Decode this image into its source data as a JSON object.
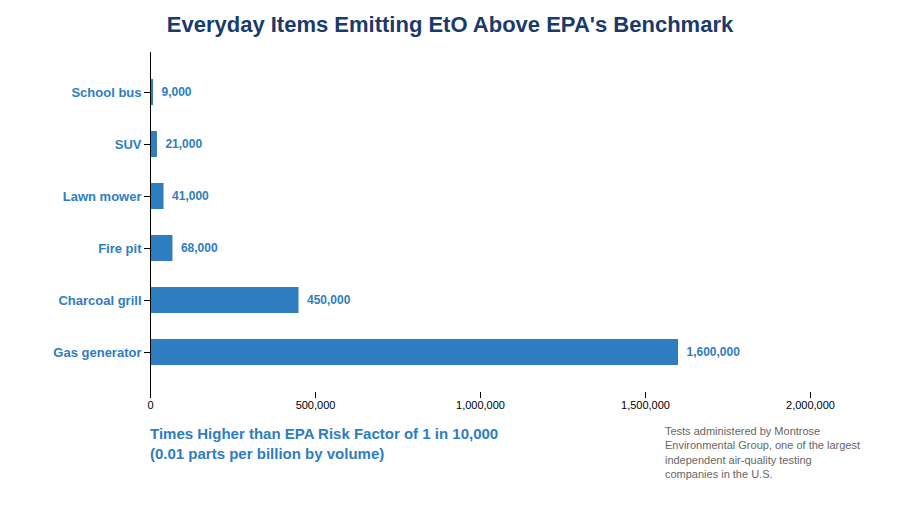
{
  "chart_data": {
    "type": "bar",
    "orientation": "horizontal",
    "title": "Everyday Items Emitting EtO Above EPA's Benchmark",
    "categories": [
      "Gas generator",
      "Charcoal grill",
      "Fire pit",
      "Lawn mower",
      "SUV",
      "School bus"
    ],
    "values": [
      1600000,
      450000,
      68000,
      41000,
      21000,
      9000
    ],
    "value_labels": [
      "1,600,000",
      "450,000",
      "68,000",
      "41,000",
      "21,000",
      "9,000"
    ],
    "data_labels": true,
    "color": "#2E7DC0",
    "xlim": [
      0,
      2000000
    ],
    "xticks": [
      0,
      {
        "value": 500000,
        "label": "500,000"
      },
      {
        "value": 1000000,
        "label": "1,000,000"
      },
      {
        "value": 1500000,
        "label": "1,500,000"
      },
      {
        "value": 2000000,
        "label": "2,000,000"
      }
    ],
    "xlabel": "Times Higher than EPA Risk Factor of 1 in 10,000\n(0.01 parts per billion by volume)",
    "annotations": [
      "Tests administered by Montrose\nEnvironmental Group, one of the largest\nindependent air-quality testing\ncompanies in the U.S."
    ],
    "grid": false
  }
}
